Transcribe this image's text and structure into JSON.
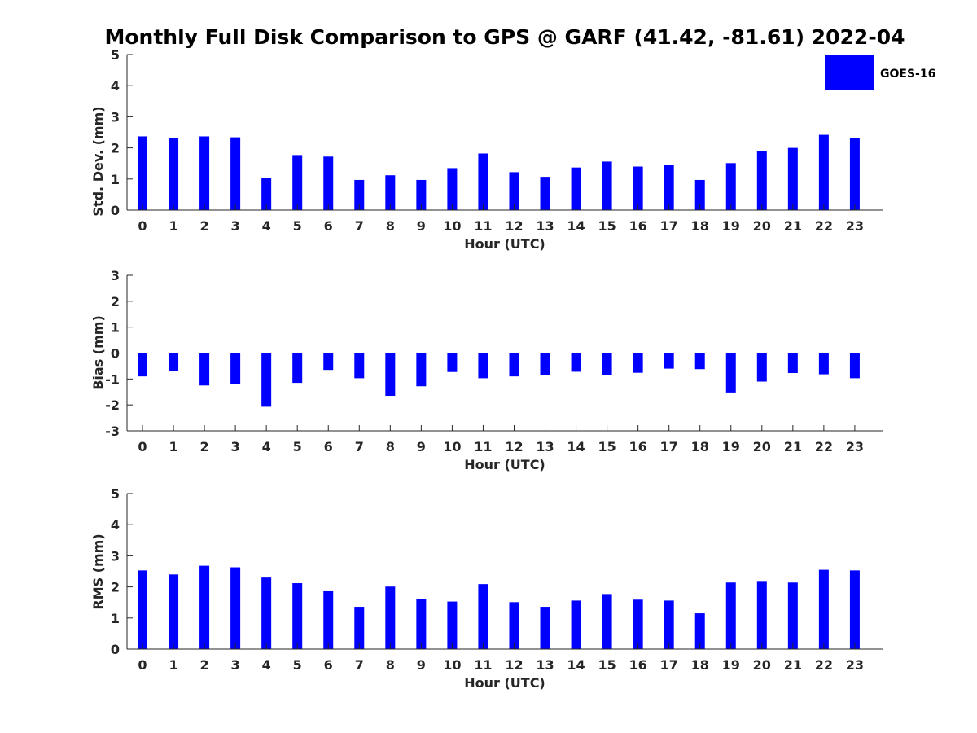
{
  "figure": {
    "title": "Monthly Full Disk Comparison to GPS @ GARF (41.42, -81.61) 2022-04",
    "bar_color": "#0000ff",
    "legend": {
      "label": "GOES-16",
      "color": "#0000ff"
    }
  },
  "chart_data": [
    {
      "type": "bar",
      "categories": [
        "0",
        "1",
        "2",
        "3",
        "4",
        "5",
        "6",
        "7",
        "8",
        "9",
        "10",
        "11",
        "12",
        "13",
        "14",
        "15",
        "16",
        "17",
        "18",
        "19",
        "20",
        "21",
        "22",
        "23"
      ],
      "series": [
        {
          "name": "GOES-16",
          "values": [
            2.37,
            2.32,
            2.37,
            2.34,
            1.02,
            1.77,
            1.72,
            0.97,
            1.12,
            0.97,
            1.35,
            1.82,
            1.22,
            1.07,
            1.37,
            1.56,
            1.4,
            1.45,
            0.97,
            1.51,
            1.9,
            2.0,
            2.42,
            2.32
          ]
        }
      ],
      "xlabel": "Hour (UTC)",
      "ylabel": "Std. Dev. (mm)",
      "ylim": [
        0,
        5
      ],
      "yticks": [
        "0",
        "1",
        "2",
        "3",
        "4",
        "5"
      ]
    },
    {
      "type": "bar",
      "categories": [
        "0",
        "1",
        "2",
        "3",
        "4",
        "5",
        "6",
        "7",
        "8",
        "9",
        "10",
        "11",
        "12",
        "13",
        "14",
        "15",
        "16",
        "17",
        "18",
        "19",
        "20",
        "21",
        "22",
        "23"
      ],
      "series": [
        {
          "name": "GOES-16",
          "values": [
            -0.9,
            -0.7,
            -1.25,
            -1.18,
            -2.07,
            -1.15,
            -0.65,
            -0.97,
            -1.65,
            -1.28,
            -0.73,
            -0.97,
            -0.9,
            -0.85,
            -0.72,
            -0.85,
            -0.76,
            -0.6,
            -0.62,
            -1.52,
            -1.1,
            -0.77,
            -0.82,
            -0.97
          ]
        }
      ],
      "xlabel": "Hour (UTC)",
      "ylabel": "Bias (mm)",
      "ylim": [
        -3,
        3
      ],
      "yticks": [
        "-3",
        "-2",
        "-1",
        "0",
        "1",
        "2",
        "3"
      ]
    },
    {
      "type": "bar",
      "categories": [
        "0",
        "1",
        "2",
        "3",
        "4",
        "5",
        "6",
        "7",
        "8",
        "9",
        "10",
        "11",
        "12",
        "13",
        "14",
        "15",
        "16",
        "17",
        "18",
        "19",
        "20",
        "21",
        "22",
        "23"
      ],
      "series": [
        {
          "name": "GOES-16",
          "values": [
            2.53,
            2.4,
            2.68,
            2.63,
            2.3,
            2.12,
            1.86,
            1.36,
            2.01,
            1.62,
            1.53,
            2.09,
            1.51,
            1.36,
            1.56,
            1.77,
            1.59,
            1.56,
            1.15,
            2.14,
            2.19,
            2.14,
            2.55,
            2.53
          ]
        }
      ],
      "xlabel": "Hour (UTC)",
      "ylabel": "RMS (mm)",
      "ylim": [
        0,
        5
      ],
      "yticks": [
        "0",
        "1",
        "2",
        "3",
        "4",
        "5"
      ]
    }
  ]
}
